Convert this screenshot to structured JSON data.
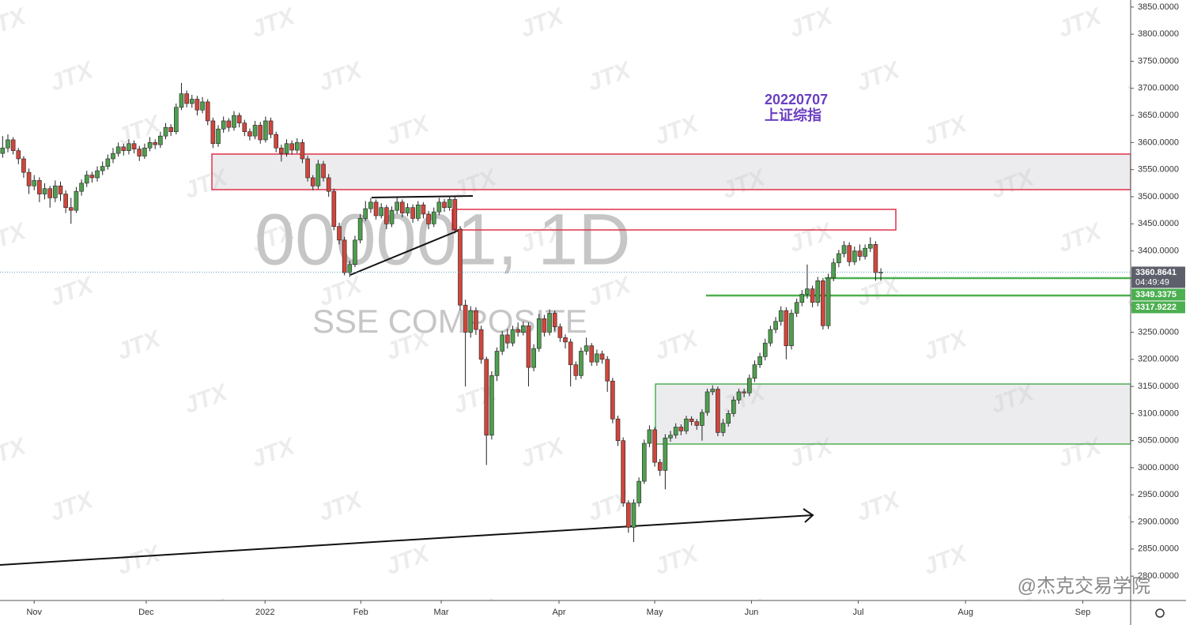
{
  "chart_data": {
    "type": "candlestick",
    "symbol_watermark": "000001, 1D",
    "name_watermark": "SSE COMPOSITE",
    "brand_watermark": "JTX",
    "annotation": {
      "date": "20220707",
      "name": "上证综指"
    },
    "credit": "@杰克交易学院",
    "colors": {
      "up": "#4f9e4f",
      "down": "#d0463c"
    },
    "ylim": [
      2755,
      3863
    ],
    "xlim": [
      0,
      215
    ],
    "yticks": [
      {
        "value": 2800,
        "label": "2800.0000"
      },
      {
        "value": 2850,
        "label": "2850.0000"
      },
      {
        "value": 2900,
        "label": "2900.0000"
      },
      {
        "value": 2950,
        "label": "2950.0000"
      },
      {
        "value": 3000,
        "label": "3000.0000"
      },
      {
        "value": 3050,
        "label": "3050.0000"
      },
      {
        "value": 3100,
        "label": "3100.0000"
      },
      {
        "value": 3150,
        "label": "3150.0000"
      },
      {
        "value": 3200,
        "label": "3200.0000"
      },
      {
        "value": 3250,
        "label": "3250.0000"
      },
      {
        "value": 3300,
        "label": "3300.0000"
      },
      {
        "value": 3350,
        "label": "3350.0000"
      },
      {
        "value": 3400,
        "label": "3400.0000"
      },
      {
        "value": 3450,
        "label": "3450.0000"
      },
      {
        "value": 3500,
        "label": "3500.0000"
      },
      {
        "value": 3550,
        "label": "3550.0000"
      },
      {
        "value": 3600,
        "label": "3600.0000"
      },
      {
        "value": 3650,
        "label": "3650.0000"
      },
      {
        "value": 3700,
        "label": "3700.0000"
      },
      {
        "value": 3750,
        "label": "3750.0000"
      },
      {
        "value": 3800,
        "label": "3800.0000"
      },
      {
        "value": 3850,
        "label": "3850.0000"
      }
    ],
    "xticks": [
      {
        "value": 6.5,
        "label": "Nov"
      },
      {
        "value": 27.8,
        "label": "Dec"
      },
      {
        "value": 50.4,
        "label": "2022"
      },
      {
        "value": 68.6,
        "label": "Feb"
      },
      {
        "value": 83.9,
        "label": "Mar"
      },
      {
        "value": 106.3,
        "label": "Apr"
      },
      {
        "value": 124.5,
        "label": "May"
      },
      {
        "value": 142.9,
        "label": "Jun"
      },
      {
        "value": 163.2,
        "label": "Jul"
      },
      {
        "value": 183.6,
        "label": "Aug"
      },
      {
        "value": 205.9,
        "label": "Sep"
      }
    ],
    "price_labels": [
      {
        "value": 3360.8641,
        "countdown": "04:49:49",
        "color": "#5d606b"
      },
      {
        "value": 3349.3375,
        "color": "#4caf50"
      },
      {
        "value": 3317.9222,
        "color": "#4caf50"
      }
    ],
    "ohlc": [
      [
        3580,
        3612,
        3572,
        3590
      ],
      [
        3590,
        3615,
        3582,
        3605
      ],
      [
        3605,
        3610,
        3578,
        3585
      ],
      [
        3585,
        3590,
        3560,
        3570
      ],
      [
        3570,
        3575,
        3535,
        3545
      ],
      [
        3545,
        3552,
        3505,
        3520
      ],
      [
        3520,
        3540,
        3512,
        3530
      ],
      [
        3530,
        3536,
        3490,
        3505
      ],
      [
        3505,
        3525,
        3495,
        3515
      ],
      [
        3515,
        3520,
        3480,
        3498
      ],
      [
        3498,
        3530,
        3490,
        3520
      ],
      [
        3520,
        3528,
        3492,
        3505
      ],
      [
        3505,
        3512,
        3470,
        3480
      ],
      [
        3480,
        3498,
        3450,
        3475
      ],
      [
        3475,
        3518,
        3470,
        3510
      ],
      [
        3510,
        3532,
        3502,
        3525
      ],
      [
        3525,
        3548,
        3518,
        3540
      ],
      [
        3540,
        3546,
        3526,
        3535
      ],
      [
        3535,
        3556,
        3528,
        3548
      ],
      [
        3548,
        3565,
        3540,
        3556
      ],
      [
        3556,
        3578,
        3550,
        3570
      ],
      [
        3570,
        3590,
        3562,
        3580
      ],
      [
        3580,
        3600,
        3574,
        3592
      ],
      [
        3592,
        3598,
        3576,
        3585
      ],
      [
        3585,
        3606,
        3578,
        3598
      ],
      [
        3598,
        3604,
        3580,
        3588
      ],
      [
        3588,
        3594,
        3566,
        3575
      ],
      [
        3575,
        3598,
        3570,
        3590
      ],
      [
        3590,
        3610,
        3584,
        3600
      ],
      [
        3600,
        3606,
        3588,
        3596
      ],
      [
        3596,
        3620,
        3590,
        3612
      ],
      [
        3612,
        3636,
        3606,
        3628
      ],
      [
        3628,
        3634,
        3612,
        3620
      ],
      [
        3620,
        3672,
        3615,
        3665
      ],
      [
        3665,
        3710,
        3660,
        3690
      ],
      [
        3690,
        3696,
        3665,
        3672
      ],
      [
        3672,
        3688,
        3664,
        3680
      ],
      [
        3680,
        3686,
        3650,
        3660
      ],
      [
        3660,
        3684,
        3654,
        3675
      ],
      [
        3675,
        3680,
        3632,
        3640
      ],
      [
        3640,
        3646,
        3590,
        3598
      ],
      [
        3598,
        3632,
        3592,
        3625
      ],
      [
        3625,
        3648,
        3618,
        3640
      ],
      [
        3640,
        3645,
        3620,
        3628
      ],
      [
        3628,
        3658,
        3622,
        3650
      ],
      [
        3650,
        3655,
        3628,
        3636
      ],
      [
        3636,
        3642,
        3612,
        3620
      ],
      [
        3620,
        3626,
        3604,
        3612
      ],
      [
        3612,
        3640,
        3606,
        3632
      ],
      [
        3632,
        3638,
        3598,
        3605
      ],
      [
        3605,
        3648,
        3600,
        3640
      ],
      [
        3640,
        3646,
        3608,
        3615
      ],
      [
        3615,
        3620,
        3582,
        3590
      ],
      [
        3590,
        3596,
        3565,
        3580
      ],
      [
        3580,
        3606,
        3574,
        3598
      ],
      [
        3598,
        3604,
        3578,
        3586
      ],
      [
        3586,
        3608,
        3580,
        3600
      ],
      [
        3600,
        3606,
        3562,
        3570
      ],
      [
        3570,
        3576,
        3528,
        3535
      ],
      [
        3535,
        3540,
        3512,
        3520
      ],
      [
        3520,
        3568,
        3514,
        3560
      ],
      [
        3560,
        3566,
        3528,
        3535
      ],
      [
        3535,
        3542,
        3500,
        3510
      ],
      [
        3510,
        3515,
        3438,
        3445
      ],
      [
        3445,
        3452,
        3412,
        3420
      ],
      [
        3420,
        3426,
        3355,
        3360
      ],
      [
        3360,
        3382,
        3352,
        3375
      ],
      [
        3375,
        3428,
        3370,
        3420
      ],
      [
        3420,
        3468,
        3414,
        3460
      ],
      [
        3460,
        3492,
        3455,
        3478
      ],
      [
        3478,
        3498,
        3470,
        3490
      ],
      [
        3490,
        3495,
        3458,
        3465
      ],
      [
        3465,
        3488,
        3460,
        3480
      ],
      [
        3480,
        3485,
        3440,
        3450
      ],
      [
        3450,
        3482,
        3444,
        3475
      ],
      [
        3475,
        3498,
        3468,
        3490
      ],
      [
        3490,
        3495,
        3462,
        3470
      ],
      [
        3470,
        3488,
        3464,
        3480
      ],
      [
        3480,
        3486,
        3452,
        3460
      ],
      [
        3460,
        3492,
        3455,
        3485
      ],
      [
        3485,
        3490,
        3460,
        3468
      ],
      [
        3468,
        3474,
        3440,
        3450
      ],
      [
        3450,
        3480,
        3444,
        3472
      ],
      [
        3472,
        3498,
        3466,
        3490
      ],
      [
        3490,
        3496,
        3472,
        3480
      ],
      [
        3480,
        3502,
        3474,
        3495
      ],
      [
        3495,
        3500,
        3432,
        3440
      ],
      [
        3440,
        3446,
        3290,
        3300
      ],
      [
        3300,
        3310,
        3150,
        3250
      ],
      [
        3250,
        3298,
        3240,
        3290
      ],
      [
        3290,
        3296,
        3245,
        3255
      ],
      [
        3255,
        3262,
        3192,
        3200
      ],
      [
        3200,
        3205,
        3005,
        3060
      ],
      [
        3060,
        3178,
        3052,
        3170
      ],
      [
        3170,
        3222,
        3160,
        3215
      ],
      [
        3215,
        3252,
        3208,
        3245
      ],
      [
        3245,
        3256,
        3220,
        3230
      ],
      [
        3230,
        3262,
        3224,
        3255
      ],
      [
        3255,
        3268,
        3242,
        3250
      ],
      [
        3250,
        3270,
        3244,
        3262
      ],
      [
        3262,
        3268,
        3150,
        3185
      ],
      [
        3185,
        3228,
        3178,
        3220
      ],
      [
        3220,
        3284,
        3214,
        3275
      ],
      [
        3275,
        3282,
        3242,
        3250
      ],
      [
        3250,
        3292,
        3244,
        3285
      ],
      [
        3285,
        3290,
        3252,
        3260
      ],
      [
        3260,
        3266,
        3232,
        3240
      ],
      [
        3240,
        3246,
        3220,
        3232
      ],
      [
        3232,
        3238,
        3150,
        3190
      ],
      [
        3190,
        3196,
        3162,
        3170
      ],
      [
        3170,
        3222,
        3164,
        3215
      ],
      [
        3215,
        3240,
        3208,
        3225
      ],
      [
        3225,
        3230,
        3188,
        3195
      ],
      [
        3195,
        3218,
        3188,
        3210
      ],
      [
        3210,
        3216,
        3192,
        3200
      ],
      [
        3200,
        3206,
        3140,
        3160
      ],
      [
        3160,
        3166,
        3082,
        3090
      ],
      [
        3090,
        3096,
        3040,
        3050
      ],
      [
        3050,
        3056,
        2928,
        2935
      ],
      [
        2935,
        2940,
        2880,
        2890
      ],
      [
        2890,
        2942,
        2863,
        2935
      ],
      [
        2935,
        2982,
        2928,
        2975
      ],
      [
        2975,
        3052,
        2970,
        3045
      ],
      [
        3045,
        3078,
        3038,
        3070
      ],
      [
        3070,
        3075,
        3002,
        3010
      ],
      [
        3010,
        3016,
        2985,
        2995
      ],
      [
        2995,
        3062,
        2960,
        3055
      ],
      [
        3055,
        3068,
        3048,
        3060
      ],
      [
        3060,
        3082,
        3054,
        3075
      ],
      [
        3075,
        3080,
        3060,
        3068
      ],
      [
        3068,
        3096,
        3062,
        3090
      ],
      [
        3090,
        3095,
        3078,
        3085
      ],
      [
        3085,
        3090,
        3070,
        3078
      ],
      [
        3078,
        3108,
        3050,
        3102
      ],
      [
        3102,
        3146,
        3096,
        3140
      ],
      [
        3140,
        3152,
        3134,
        3145
      ],
      [
        3145,
        3150,
        3058,
        3065
      ],
      [
        3065,
        3090,
        3058,
        3082
      ],
      [
        3082,
        3106,
        3076,
        3100
      ],
      [
        3100,
        3132,
        3094,
        3125
      ],
      [
        3125,
        3146,
        3118,
        3140
      ],
      [
        3140,
        3146,
        3130,
        3138
      ],
      [
        3138,
        3172,
        3132,
        3165
      ],
      [
        3165,
        3198,
        3158,
        3190
      ],
      [
        3190,
        3212,
        3184,
        3205
      ],
      [
        3205,
        3238,
        3198,
        3230
      ],
      [
        3230,
        3262,
        3224,
        3255
      ],
      [
        3255,
        3278,
        3248,
        3270
      ],
      [
        3270,
        3298,
        3262,
        3290
      ],
      [
        3290,
        3296,
        3200,
        3225
      ],
      [
        3225,
        3292,
        3218,
        3285
      ],
      [
        3285,
        3312,
        3278,
        3305
      ],
      [
        3305,
        3328,
        3298,
        3320
      ],
      [
        3320,
        3375,
        3312,
        3330
      ],
      [
        3330,
        3336,
        3296,
        3305
      ],
      [
        3305,
        3352,
        3298,
        3345
      ],
      [
        3345,
        3350,
        3255,
        3262
      ],
      [
        3262,
        3358,
        3256,
        3350
      ],
      [
        3350,
        3386,
        3344,
        3378
      ],
      [
        3378,
        3402,
        3370,
        3395
      ],
      [
        3395,
        3418,
        3388,
        3410
      ],
      [
        3410,
        3416,
        3372,
        3380
      ],
      [
        3380,
        3408,
        3374,
        3400
      ],
      [
        3400,
        3412,
        3382,
        3390
      ],
      [
        3390,
        3412,
        3384,
        3405
      ],
      [
        3405,
        3425,
        3398,
        3412
      ],
      [
        3412,
        3418,
        3345,
        3360
      ],
      [
        3360,
        3368,
        3345,
        3361
      ]
    ]
  }
}
